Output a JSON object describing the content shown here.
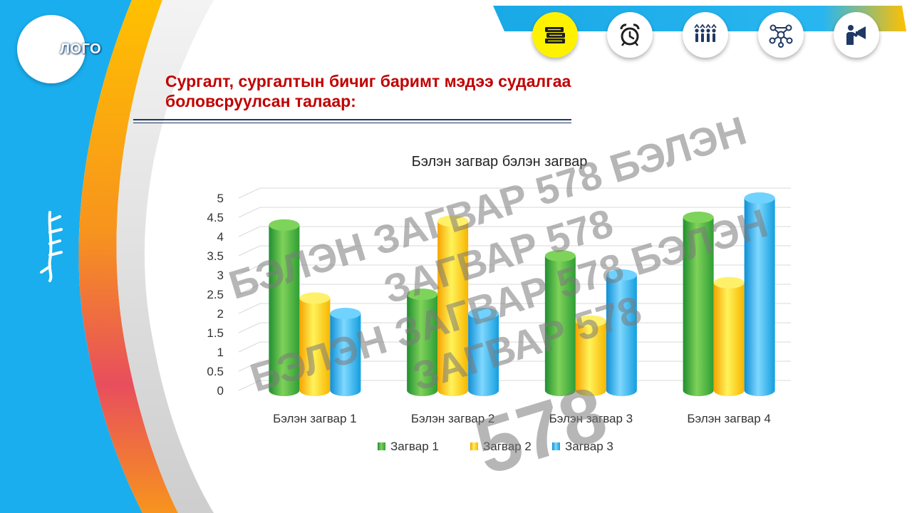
{
  "logo": {
    "text": "ЛОГО"
  },
  "slide": {
    "title": "Сургалт, сургалтын бичиг баримт мэдээ судалгаа боловсруулсан талаар:"
  },
  "nav": {
    "icons": [
      {
        "name": "books-icon",
        "active": true
      },
      {
        "name": "alarm-clock-icon",
        "active": false
      },
      {
        "name": "people-group-icon",
        "active": false
      },
      {
        "name": "network-icon",
        "active": false
      },
      {
        "name": "presenter-megaphone-icon",
        "active": false
      }
    ]
  },
  "colors": {
    "accent_blue": "#1aaeee",
    "title_red": "#c00000",
    "green": "#3fae3f",
    "yellow": "#ffd000",
    "cyan": "#25b4ec"
  },
  "chart_data": {
    "type": "bar",
    "title": "Бэлэн загвар бэлэн загвар",
    "categories": [
      "Бэлэн загвар 1",
      "Бэлэн загвар 2",
      "Бэлэн загвар 3",
      "Бэлэн загвар 4"
    ],
    "series": [
      {
        "name": "Загвар 1",
        "values": [
          4.3,
          2.5,
          3.5,
          4.5
        ],
        "color": "#3fae3f"
      },
      {
        "name": "Загвар 2",
        "values": [
          2.4,
          4.4,
          1.8,
          2.8
        ],
        "color": "#ffd000"
      },
      {
        "name": "Загвар 3",
        "values": [
          2.0,
          2.0,
          3.0,
          5.0
        ],
        "color": "#25b4ec"
      }
    ],
    "yticks": [
      "0",
      "0.5",
      "1",
      "1.5",
      "2",
      "2.5",
      "3",
      "3.5",
      "4",
      "4.5",
      "5"
    ],
    "ylim": [
      0,
      5
    ],
    "grid": true,
    "legend_position": "bottom"
  },
  "watermark": {
    "lines": [
      "БЭЛЭН ЗАГВАР 578 БЭЛЭН",
      "ЗАГВАР 578",
      "БЭЛЭН ЗАГВАР 578 БЭЛЭН",
      "ЗАГВАР 578",
      "578"
    ]
  }
}
